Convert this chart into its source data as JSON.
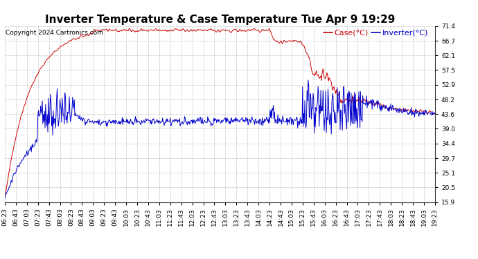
{
  "title": "Inverter Temperature & Case Temperature Tue Apr 9 19:29",
  "copyright": "Copyright 2024 Cartronics.com",
  "legend_case": "Case(°C)",
  "legend_inverter": "Inverter(°C)",
  "yticks": [
    15.9,
    20.5,
    25.1,
    29.7,
    34.4,
    39.0,
    43.6,
    48.2,
    52.9,
    57.5,
    62.1,
    66.7,
    71.4
  ],
  "ymin": 15.9,
  "ymax": 71.4,
  "bg_color": "#ffffff",
  "grid_color": "#bbbbbb",
  "case_color": "#cc0000",
  "inverter_color": "#0000cc",
  "title_fontsize": 11,
  "tick_fontsize": 6.5,
  "legend_fontsize": 8,
  "copyright_fontsize": 6.5
}
